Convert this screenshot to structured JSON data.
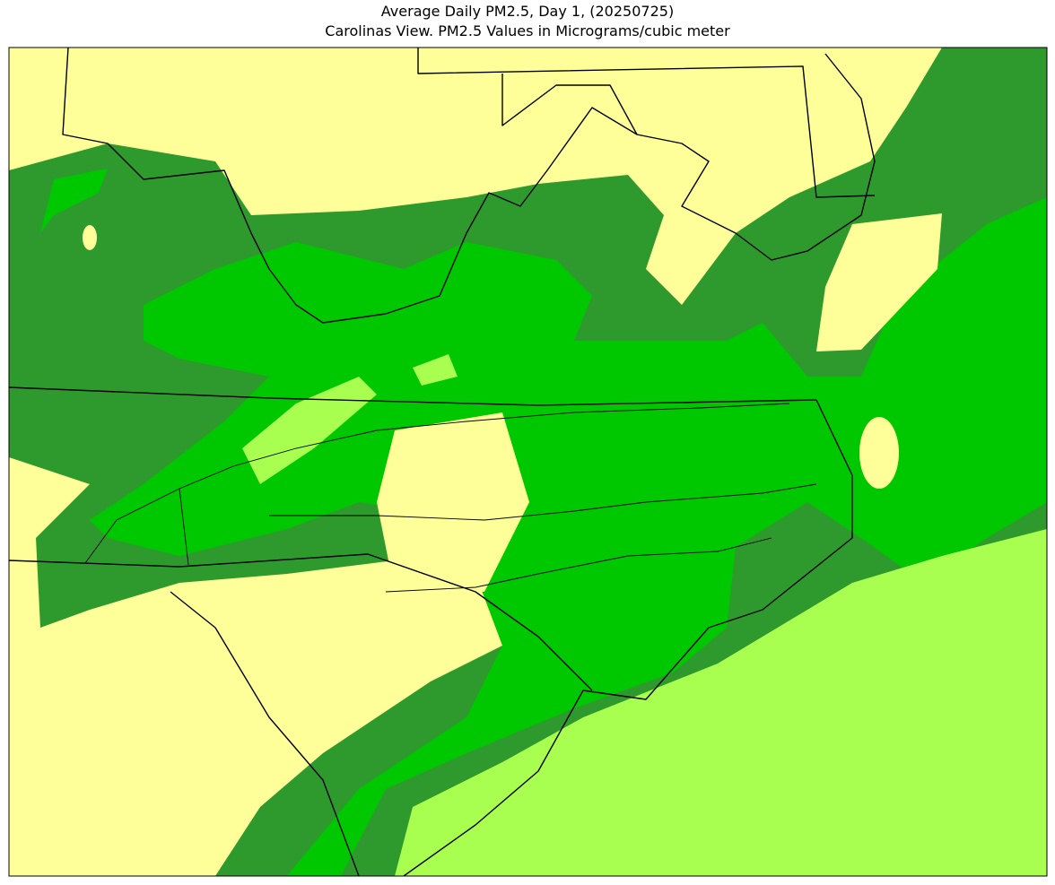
{
  "header": {
    "title": "Average Daily PM2.5, Day 1, (20250725)",
    "subtitle": "Carolinas View. PM2.5 Values in Micrograms/cubic meter"
  }
}
